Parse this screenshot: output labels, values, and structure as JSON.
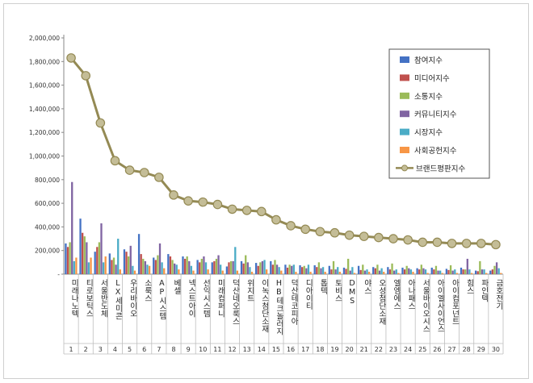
{
  "chart_data": {
    "type": "bar",
    "categories": [
      "미래나노텍",
      "티로보틱스",
      "서울반도체",
      "LX세미콘",
      "우리바이오",
      "소룩스",
      "AP시스템",
      "베셀",
      "넥스트아이",
      "선익시스템",
      "미래컴퍼니",
      "덕산네오룩스",
      "위지트",
      "이녹스첨단소재",
      "HB테크놀러지",
      "덕산테코피아",
      "디아이티",
      "톱텍",
      "토비스",
      "DMS",
      "야스",
      "오성첨단소재",
      "엘엠에스",
      "아나패스",
      "서울바이오시스",
      "아이엘사이언스",
      "아이컴포넌트",
      "힘스",
      "파인텍",
      "금호전기"
    ],
    "ranks": [
      "1",
      "2",
      "3",
      "4",
      "5",
      "6",
      "7",
      "8",
      "9",
      "10",
      "11",
      "12",
      "13",
      "14",
      "15",
      "16",
      "17",
      "18",
      "19",
      "20",
      "21",
      "22",
      "23",
      "24",
      "25",
      "26",
      "27",
      "28",
      "29",
      "30"
    ],
    "ylim": [
      0,
      2000000
    ],
    "yticks": [
      "-",
      "200,000",
      "400,000",
      "600,000",
      "800,000",
      "1,000,000",
      "1,200,000",
      "1,400,000",
      "1,600,000",
      "1,800,000",
      "2,000,000"
    ],
    "legend_position": "top-right",
    "series": [
      {
        "name": "참여지수",
        "color": "#4472c4",
        "values": [
          260000,
          470000,
          190000,
          175000,
          210000,
          340000,
          140000,
          170000,
          150000,
          120000,
          100000,
          65000,
          110000,
          95000,
          110000,
          80000,
          75000,
          75000,
          70000,
          55000,
          70000,
          60000,
          60000,
          55000,
          50000,
          55000,
          45000,
          55000,
          30000,
          30000
        ]
      },
      {
        "name": "미디어지수",
        "color": "#c0504d",
        "values": [
          230000,
          350000,
          230000,
          120000,
          190000,
          170000,
          120000,
          150000,
          130000,
          100000,
          110000,
          100000,
          90000,
          70000,
          80000,
          55000,
          60000,
          60000,
          40000,
          45000,
          35000,
          50000,
          40000,
          40000,
          40000,
          40000,
          35000,
          40000,
          25000,
          40000
        ]
      },
      {
        "name": "소통지수",
        "color": "#9bbb59",
        "values": [
          270000,
          320000,
          270000,
          140000,
          150000,
          130000,
          160000,
          120000,
          150000,
          130000,
          130000,
          110000,
          160000,
          100000,
          120000,
          80000,
          70000,
          100000,
          110000,
          130000,
          80000,
          80000,
          90000,
          70000,
          80000,
          70000,
          75000,
          40000,
          110000,
          70000
        ]
      },
      {
        "name": "커뮤니티지수",
        "color": "#8064a2",
        "values": [
          780000,
          270000,
          430000,
          80000,
          240000,
          110000,
          260000,
          90000,
          110000,
          150000,
          160000,
          110000,
          100000,
          110000,
          80000,
          70000,
          50000,
          50000,
          40000,
          30000,
          30000,
          30000,
          30000,
          50000,
          50000,
          30000,
          30000,
          130000,
          40000,
          100000
        ]
      },
      {
        "name": "시장지수",
        "color": "#4bacc6",
        "values": [
          110000,
          100000,
          100000,
          300000,
          70000,
          80000,
          100000,
          80000,
          70000,
          100000,
          80000,
          230000,
          60000,
          120000,
          60000,
          80000,
          80000,
          60000,
          60000,
          60000,
          40000,
          50000,
          40000,
          40000,
          40000,
          30000,
          40000,
          40000,
          40000,
          50000
        ]
      },
      {
        "name": "사회공헌지수",
        "color": "#f79646",
        "values": [
          140000,
          140000,
          150000,
          40000,
          30000,
          70000,
          50000,
          40000,
          30000,
          40000,
          30000,
          30000,
          20000,
          40000,
          30000,
          20000,
          20000,
          20000,
          20000,
          10000,
          20000,
          20000,
          10000,
          20000,
          10000,
          10000,
          10000,
          10000,
          10000,
          10000
        ]
      }
    ],
    "line_series": {
      "name": "브랜드평판지수",
      "color": "#948a54",
      "values": [
        1830000,
        1680000,
        1280000,
        960000,
        880000,
        860000,
        820000,
        670000,
        620000,
        610000,
        590000,
        550000,
        540000,
        530000,
        460000,
        410000,
        380000,
        360000,
        350000,
        330000,
        320000,
        310000,
        300000,
        290000,
        270000,
        270000,
        260000,
        260000,
        260000,
        250000
      ]
    }
  }
}
